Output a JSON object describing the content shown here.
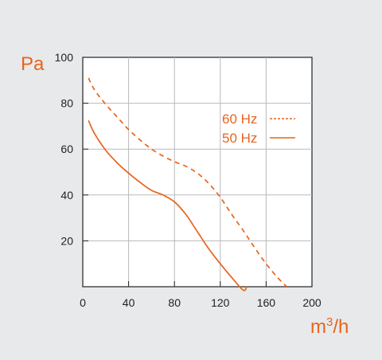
{
  "chart_data": {
    "type": "line",
    "ylabel": "Pa",
    "xlabel_base": "m",
    "xlabel_sup": "3",
    "xlabel_suffix": "/h",
    "xlim": [
      0,
      200
    ],
    "ylim": [
      0,
      100
    ],
    "x_ticks": [
      0,
      40,
      80,
      120,
      160,
      200
    ],
    "y_ticks": [
      20,
      40,
      60,
      80,
      100
    ],
    "grid": true,
    "legend_position": "right",
    "accent_color": "#e8641c",
    "series": [
      {
        "name": "60 Hz",
        "style": "dashed",
        "x": [
          5,
          10,
          20,
          30,
          40,
          50,
          60,
          70,
          80,
          90,
          100,
          110,
          120,
          130,
          140,
          150,
          160,
          170,
          178
        ],
        "y": [
          91,
          86,
          79.5,
          74,
          68.5,
          64,
          60,
          57,
          54.5,
          52.5,
          49.5,
          45,
          39,
          31.5,
          24.5,
          17,
          10,
          4,
          0
        ]
      },
      {
        "name": "50 Hz",
        "style": "solid",
        "x": [
          5,
          10,
          20,
          30,
          40,
          50,
          60,
          70,
          80,
          90,
          100,
          110,
          120,
          130,
          140,
          143
        ],
        "y": [
          72.5,
          67,
          59.5,
          54,
          49.5,
          45.5,
          42,
          40,
          37,
          31.5,
          24,
          16.5,
          10,
          4,
          -1.5,
          0
        ]
      }
    ]
  }
}
